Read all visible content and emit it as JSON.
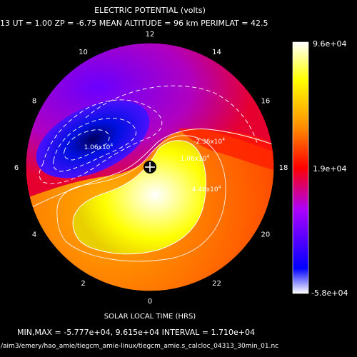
{
  "chart_data": {
    "type": "heatmap",
    "projection": "polar",
    "title": "ELECTRIC POTENTIAL (volts)",
    "subtitle": "13   UT =   1.00   ZP =   -6.75   MEAN ALTITUDE =   96 km   PERIMLAT =   42.5",
    "xlabel": "SOLAR LOCAL TIME (HRS)",
    "hour_ticks": [
      {
        "label": "12",
        "hour": 12
      },
      {
        "label": "10",
        "hour": 10
      },
      {
        "label": "8",
        "hour": 8
      },
      {
        "label": "6",
        "hour": 6
      },
      {
        "label": "4",
        "hour": 4
      },
      {
        "label": "2",
        "hour": 2
      },
      {
        "label": "0",
        "hour": 0
      },
      {
        "label": "22",
        "hour": 22
      },
      {
        "label": "20",
        "hour": 20
      },
      {
        "label": "18",
        "hour": 18
      },
      {
        "label": "16",
        "hour": 16
      },
      {
        "label": "14",
        "hour": 14
      }
    ],
    "colorbar": {
      "min_label": "-5.8e+04",
      "mid_label": "1.9e+04",
      "max_label": "9.6e+04",
      "range": [
        -58000,
        96000
      ],
      "colors": [
        "#ffffff",
        "#0000ff",
        "#aa00ff",
        "#ff0000",
        "#ff8c00",
        "#ffff00",
        "#ffffff"
      ]
    },
    "contour_labels": [
      {
        "text": "-2.36x10",
        "exp": "4",
        "hour": 16.1,
        "colat": 0.4
      },
      {
        "text": "1.06x10",
        "exp": "4",
        "hour": 17.2,
        "colat": 0.25
      },
      {
        "text": "1.06x10",
        "exp": "4",
        "hour": 7.0,
        "colat": 0.55
      },
      {
        "text": "4.48x10",
        "exp": "4",
        "hour": 20.0,
        "colat": 0.39
      }
    ],
    "potential_min": -57770,
    "potential_max": 96150,
    "contour_interval": 17100
  },
  "footer": {
    "stats": "MIN,MAX = -5.777e+04, 9.615e+04 INTERVAL =  1.710e+04",
    "filepath": "/aim3/emery/hao_amie/tiegcm_amie-linux/tiegcm_amie.s_calcloc_04313_30min_01.nc"
  }
}
